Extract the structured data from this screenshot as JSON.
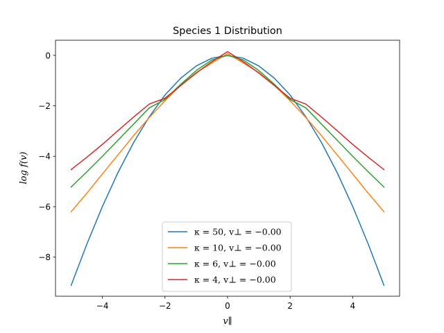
{
  "chart_data": {
    "type": "line",
    "title": "Species 1 Distribution",
    "xlabel": "v∥",
    "ylabel": "log f(v)",
    "xlim": [
      -5.5,
      5.5
    ],
    "ylim": [
      -9.55,
      0.6
    ],
    "xticks": [
      -4,
      -2,
      0,
      2,
      4
    ],
    "xtick_labels": [
      "−4",
      "−2",
      "0",
      "2",
      "4"
    ],
    "yticks": [
      0,
      -2,
      -4,
      -6,
      -8
    ],
    "ytick_labels": [
      "0",
      "−2",
      "−4",
      "−6",
      "−8"
    ],
    "grid": false,
    "legend_position": "lower center",
    "x": [
      -5,
      -4.5,
      -4,
      -3.5,
      -3,
      -2.5,
      -2,
      -1.5,
      -1,
      -0.5,
      0,
      0.5,
      1,
      1.5,
      2,
      2.5,
      3,
      3.5,
      4,
      4.5,
      5
    ],
    "series": [
      {
        "name": "κ = 50, v⊥ = −0.00",
        "color": "#1f77b4",
        "values": [
          -9.12,
          -7.49,
          -5.99,
          -4.64,
          -3.45,
          -2.43,
          -1.57,
          -0.91,
          -0.42,
          -0.11,
          0.0,
          -0.11,
          -0.42,
          -0.91,
          -1.57,
          -2.43,
          -3.45,
          -4.64,
          -5.99,
          -7.49,
          -9.12
        ]
      },
      {
        "name": "κ = 10, v⊥ = −0.00",
        "color": "#ff7f0e",
        "values": [
          -6.2,
          -5.47,
          -4.7,
          -3.94,
          -3.18,
          -2.46,
          -1.8,
          -1.19,
          -0.68,
          -0.3,
          0.07,
          -0.3,
          -0.68,
          -1.19,
          -1.8,
          -2.46,
          -3.18,
          -3.94,
          -4.7,
          -5.47,
          -6.2
        ]
      },
      {
        "name": "κ = 6, v⊥ = −0.00",
        "color": "#2ca02c",
        "values": [
          -5.22,
          -4.62,
          -4.0,
          -3.36,
          -2.72,
          -2.08,
          -1.75,
          -1.15,
          -0.6,
          -0.18,
          0.0,
          -0.18,
          -0.6,
          -1.15,
          -1.75,
          -2.08,
          -2.72,
          -3.36,
          -4.0,
          -4.62,
          -5.22
        ]
      },
      {
        "name": "κ = 4, v⊥ = −0.00",
        "color": "#d62728",
        "values": [
          -4.53,
          -4.04,
          -3.53,
          -2.98,
          -2.44,
          -1.93,
          -1.7,
          -1.2,
          -0.7,
          -0.25,
          0.15,
          -0.25,
          -0.7,
          -1.2,
          -1.7,
          -1.93,
          -2.44,
          -2.98,
          -3.53,
          -4.04,
          -4.53
        ]
      }
    ]
  }
}
